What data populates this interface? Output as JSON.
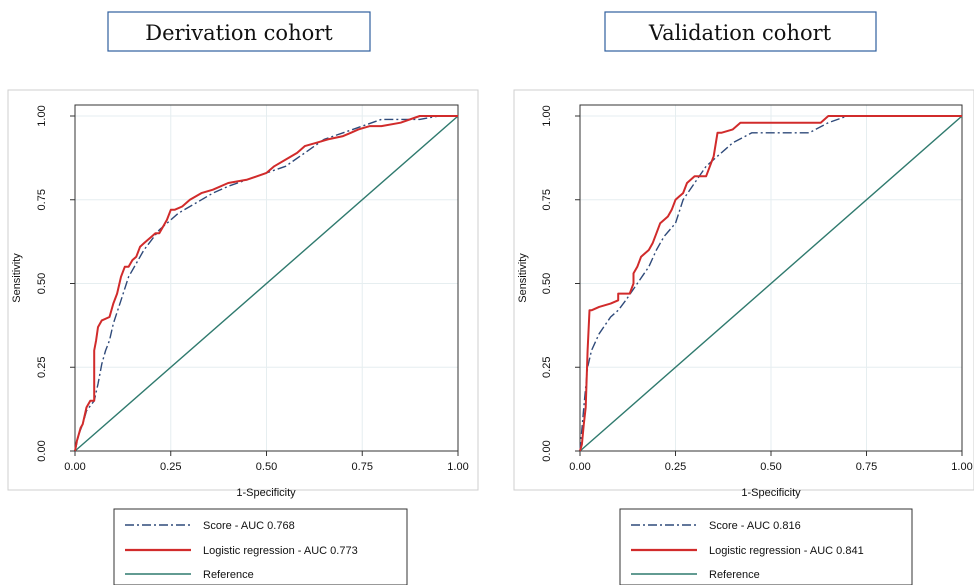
{
  "colors": {
    "score": "#2f4a7a",
    "logistic": "#d12b2b",
    "reference": "#2f7a6e",
    "grid": "#e6eef0",
    "frame": "#333333",
    "title_border": "#2f5f9e"
  },
  "chart_data": [
    {
      "type": "line",
      "title": "Derivation cohort",
      "xlabel": "1-Specificity",
      "ylabel": "Sensitivity",
      "xlim": [
        0,
        1
      ],
      "ylim": [
        0,
        1
      ],
      "xticks": [
        "0.00",
        "0.25",
        "0.50",
        "0.75",
        "1.00"
      ],
      "yticks": [
        "0.00",
        "0.25",
        "0.50",
        "0.75",
        "1.00"
      ],
      "grid": true,
      "legend_position": "bottom",
      "series": [
        {
          "name": "Score - AUC 0.768",
          "style": "dash-dot",
          "x": [
            0,
            0.01,
            0.02,
            0.03,
            0.05,
            0.06,
            0.07,
            0.08,
            0.09,
            0.1,
            0.12,
            0.14,
            0.16,
            0.18,
            0.2,
            0.22,
            0.25,
            0.27,
            0.3,
            0.33,
            0.36,
            0.4,
            0.45,
            0.5,
            0.55,
            0.6,
            0.65,
            0.7,
            0.75,
            0.8,
            0.85,
            0.9,
            0.95,
            1.0
          ],
          "y": [
            0,
            0.05,
            0.08,
            0.12,
            0.15,
            0.2,
            0.26,
            0.3,
            0.33,
            0.38,
            0.45,
            0.52,
            0.56,
            0.6,
            0.63,
            0.66,
            0.69,
            0.71,
            0.73,
            0.75,
            0.77,
            0.79,
            0.81,
            0.83,
            0.85,
            0.89,
            0.93,
            0.95,
            0.97,
            0.99,
            0.99,
            0.99,
            1.0,
            1.0
          ]
        },
        {
          "name": "Logistic regression - AUC 0.773",
          "style": "solid",
          "x": [
            0,
            0.005,
            0.01,
            0.015,
            0.02,
            0.03,
            0.03,
            0.04,
            0.05,
            0.05,
            0.055,
            0.06,
            0.07,
            0.09,
            0.1,
            0.11,
            0.12,
            0.13,
            0.14,
            0.15,
            0.16,
            0.17,
            0.18,
            0.19,
            0.2,
            0.21,
            0.22,
            0.24,
            0.25,
            0.26,
            0.28,
            0.3,
            0.33,
            0.36,
            0.4,
            0.45,
            0.5,
            0.52,
            0.55,
            0.58,
            0.6,
            0.63,
            0.66,
            0.7,
            0.72,
            0.74,
            0.77,
            0.8,
            0.85,
            0.9,
            0.95,
            1.0
          ],
          "y": [
            0,
            0.03,
            0.05,
            0.07,
            0.08,
            0.13,
            0.13,
            0.15,
            0.15,
            0.3,
            0.33,
            0.37,
            0.39,
            0.4,
            0.44,
            0.47,
            0.52,
            0.55,
            0.55,
            0.57,
            0.58,
            0.61,
            0.62,
            0.63,
            0.64,
            0.65,
            0.65,
            0.69,
            0.72,
            0.72,
            0.73,
            0.75,
            0.77,
            0.78,
            0.8,
            0.81,
            0.83,
            0.85,
            0.87,
            0.89,
            0.91,
            0.92,
            0.93,
            0.94,
            0.95,
            0.96,
            0.97,
            0.97,
            0.98,
            1.0,
            1.0,
            1.0
          ]
        },
        {
          "name": "Reference",
          "style": "solid",
          "x": [
            0,
            1
          ],
          "y": [
            0,
            1
          ]
        }
      ]
    },
    {
      "type": "line",
      "title": "Validation cohort",
      "xlabel": "1-Specificity",
      "ylabel": "Sensitivity",
      "xlim": [
        0,
        1
      ],
      "ylim": [
        0,
        1
      ],
      "xticks": [
        "0.00",
        "0.25",
        "0.50",
        "0.75",
        "1.00"
      ],
      "yticks": [
        "0.00",
        "0.25",
        "0.50",
        "0.75",
        "1.00"
      ],
      "grid": true,
      "legend_position": "bottom",
      "series": [
        {
          "name": "Score - AUC 0.816",
          "style": "dash-dot",
          "x": [
            0,
            0.01,
            0.02,
            0.03,
            0.05,
            0.08,
            0.1,
            0.12,
            0.15,
            0.18,
            0.2,
            0.22,
            0.25,
            0.27,
            0.3,
            0.33,
            0.36,
            0.4,
            0.45,
            0.5,
            0.55,
            0.6,
            0.65,
            0.7,
            0.75,
            1.0
          ],
          "y": [
            0,
            0.13,
            0.25,
            0.3,
            0.35,
            0.4,
            0.42,
            0.45,
            0.5,
            0.55,
            0.6,
            0.64,
            0.68,
            0.75,
            0.8,
            0.85,
            0.88,
            0.92,
            0.95,
            0.95,
            0.95,
            0.95,
            0.98,
            1.0,
            1.0,
            1.0
          ]
        },
        {
          "name": "Logistic regression - AUC 0.841",
          "style": "solid",
          "x": [
            0,
            0.005,
            0.01,
            0.015,
            0.02,
            0.025,
            0.03,
            0.05,
            0.08,
            0.1,
            0.1,
            0.13,
            0.14,
            0.14,
            0.15,
            0.16,
            0.18,
            0.19,
            0.2,
            0.21,
            0.23,
            0.24,
            0.25,
            0.26,
            0.27,
            0.28,
            0.3,
            0.31,
            0.33,
            0.35,
            0.36,
            0.37,
            0.4,
            0.42,
            0.45,
            0.5,
            0.55,
            0.6,
            0.63,
            0.65,
            0.7,
            0.75,
            1.0
          ],
          "y": [
            0,
            0.02,
            0.08,
            0.13,
            0.3,
            0.42,
            0.42,
            0.43,
            0.44,
            0.45,
            0.47,
            0.47,
            0.5,
            0.53,
            0.55,
            0.58,
            0.6,
            0.62,
            0.65,
            0.68,
            0.7,
            0.72,
            0.75,
            0.76,
            0.77,
            0.8,
            0.82,
            0.82,
            0.82,
            0.88,
            0.95,
            0.95,
            0.96,
            0.98,
            0.98,
            0.98,
            0.98,
            0.98,
            0.98,
            1.0,
            1.0,
            1.0,
            1.0
          ]
        },
        {
          "name": "Reference",
          "style": "solid",
          "x": [
            0,
            1
          ],
          "y": [
            0,
            1
          ]
        }
      ]
    }
  ]
}
